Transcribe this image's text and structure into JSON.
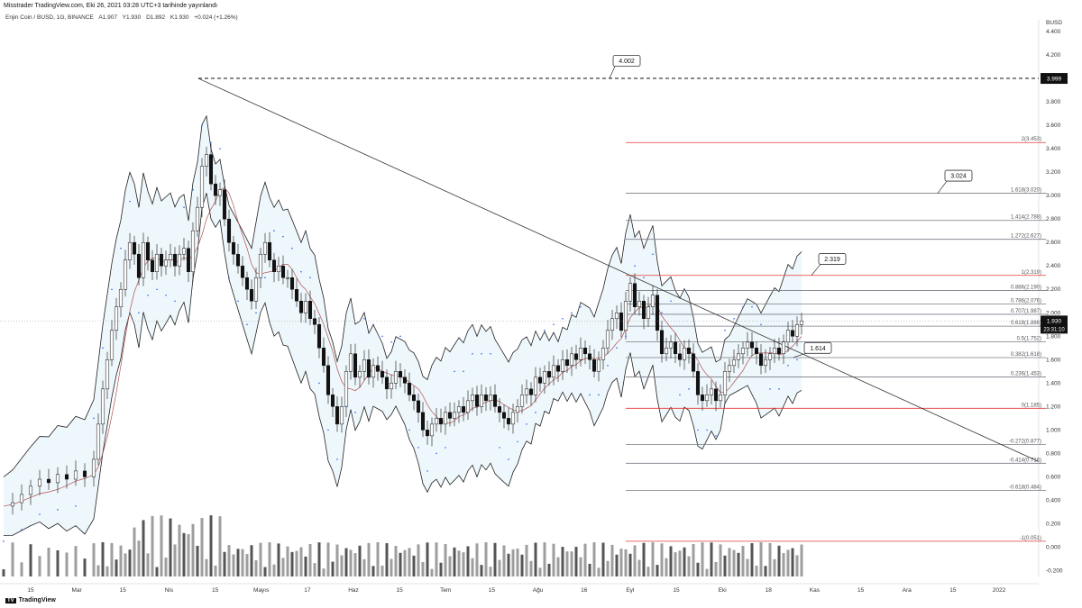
{
  "header": {
    "publish_line": "Misstrader TradingView.com, Eki 26, 2021 03:28 UTC+3 tarihinde yayınlandı"
  },
  "legend": {
    "symbol": "Enjin Coin / BUSD, 1G, BINANCE",
    "open": "A1.907",
    "high": "Y1.930",
    "low": "D1.892",
    "close": "K1.930",
    "change": "+0.024 (+1.26%)"
  },
  "currency_label": "BUSD",
  "branding": "TradingView",
  "chart_data": {
    "type": "candlestick",
    "symbol": "ENJ/BUSD",
    "timeframe": "1G",
    "exchange": "BINANCE",
    "ylim": [
      -0.25,
      4.5
    ],
    "y_ticks": [
      "4.400",
      "4.200",
      "4.000",
      "3.800",
      "3.600",
      "3.400",
      "3.200",
      "3.000",
      "2.800",
      "2.600",
      "2.400",
      "2.200",
      "2.000",
      "1.800",
      "1.600",
      "1.400",
      "1.200",
      "1.000",
      "0.800",
      "0.600",
      "0.400",
      "0.200",
      "0.000",
      "-0.200"
    ],
    "x_ticks": [
      "15",
      "Mar",
      "15",
      "Nis",
      "15",
      "Mayıs",
      "17",
      "Haz",
      "15",
      "Tem",
      "15",
      "Ağu",
      "16",
      "Eyl",
      "15",
      "Eki",
      "18",
      "Kas",
      "15",
      "Ara",
      "15",
      "2022"
    ],
    "current_price": "1.930",
    "countdown": "23:31:10",
    "high_marker": "3.999",
    "annotations": [
      "4.002",
      "3.024",
      "2.319",
      "1.614"
    ],
    "fib_levels": [
      {
        "label": "2(3.453)",
        "value": 3.453,
        "color": "#e53935"
      },
      {
        "label": "1.618(3.020)",
        "value": 3.02,
        "color": "#787b86"
      },
      {
        "label": "1.414(2.788)",
        "value": 2.788,
        "color": "#787b86"
      },
      {
        "label": "1.272(2.627)",
        "value": 2.627,
        "color": "#787b86"
      },
      {
        "label": "1(2.319)",
        "value": 2.319,
        "color": "#e53935"
      },
      {
        "label": "0.886(2.190)",
        "value": 2.19,
        "color": "#787b86"
      },
      {
        "label": "0.786(2.076)",
        "value": 2.076,
        "color": "#787b86"
      },
      {
        "label": "0.707(1.987)",
        "value": 1.987,
        "color": "#787b86"
      },
      {
        "label": "0.618(1.886)",
        "value": 1.886,
        "color": "#787b86"
      },
      {
        "label": "0.5(1.752)",
        "value": 1.752,
        "color": "#787b86"
      },
      {
        "label": "0.382(1.618)",
        "value": 1.618,
        "color": "#787b86"
      },
      {
        "label": "0.236(1.453)",
        "value": 1.453,
        "color": "#787b86"
      },
      {
        "label": "0(1.185)",
        "value": 1.185,
        "color": "#e53935"
      },
      {
        "label": "-0.272(0.877)",
        "value": 0.877,
        "color": "#787b86"
      },
      {
        "label": "-0.414(0.716)",
        "value": 0.716,
        "color": "#787b86"
      },
      {
        "label": "-0.618(0.484)",
        "value": 0.484,
        "color": "#787b86"
      },
      {
        "label": "-1(0.051)",
        "value": 0.051,
        "color": "#e53935"
      }
    ],
    "price_path": [
      [
        0,
        0.35
      ],
      [
        10,
        0.38
      ],
      [
        20,
        0.45
      ],
      [
        30,
        0.52
      ],
      [
        40,
        0.58
      ],
      [
        50,
        0.55
      ],
      [
        60,
        0.62
      ],
      [
        70,
        0.58
      ],
      [
        80,
        0.65
      ],
      [
        90,
        0.6
      ],
      [
        100,
        0.75
      ],
      [
        105,
        1.05
      ],
      [
        110,
        1.35
      ],
      [
        115,
        1.6
      ],
      [
        120,
        1.85
      ],
      [
        125,
        2.05
      ],
      [
        130,
        2.2
      ],
      [
        135,
        2.45
      ],
      [
        140,
        2.6
      ],
      [
        145,
        2.5
      ],
      [
        150,
        2.3
      ],
      [
        155,
        2.6
      ],
      [
        160,
        2.45
      ],
      [
        165,
        2.35
      ],
      [
        170,
        2.5
      ],
      [
        175,
        2.4
      ],
      [
        180,
        2.45
      ],
      [
        185,
        2.5
      ],
      [
        190,
        2.4
      ],
      [
        195,
        2.5
      ],
      [
        200,
        2.55
      ],
      [
        205,
        2.35
      ],
      [
        210,
        2.7
      ],
      [
        215,
        2.9
      ],
      [
        220,
        3.25
      ],
      [
        225,
        3.35
      ],
      [
        230,
        3.1
      ],
      [
        235,
        3.0
      ],
      [
        240,
        3.05
      ],
      [
        245,
        2.8
      ],
      [
        250,
        2.6
      ],
      [
        255,
        2.5
      ],
      [
        260,
        2.4
      ],
      [
        265,
        2.3
      ],
      [
        270,
        2.2
      ],
      [
        275,
        2.1
      ],
      [
        280,
        2.3
      ],
      [
        285,
        2.5
      ],
      [
        290,
        2.6
      ],
      [
        295,
        2.45
      ],
      [
        300,
        2.35
      ],
      [
        305,
        2.4
      ],
      [
        310,
        2.3
      ],
      [
        315,
        2.3
      ],
      [
        320,
        2.2
      ],
      [
        325,
        2.1
      ],
      [
        330,
        2.0
      ],
      [
        335,
        2.1
      ],
      [
        340,
        1.95
      ],
      [
        345,
        1.9
      ],
      [
        350,
        1.7
      ],
      [
        355,
        1.55
      ],
      [
        360,
        1.3
      ],
      [
        365,
        1.2
      ],
      [
        370,
        1.05
      ],
      [
        375,
        1.2
      ],
      [
        380,
        1.5
      ],
      [
        385,
        1.65
      ],
      [
        390,
        1.45
      ],
      [
        395,
        1.5
      ],
      [
        400,
        1.6
      ],
      [
        405,
        1.45
      ],
      [
        410,
        1.55
      ],
      [
        415,
        1.5
      ],
      [
        420,
        1.45
      ],
      [
        425,
        1.35
      ],
      [
        430,
        1.4
      ],
      [
        435,
        1.5
      ],
      [
        440,
        1.45
      ],
      [
        445,
        1.4
      ],
      [
        450,
        1.3
      ],
      [
        455,
        1.25
      ],
      [
        460,
        1.15
      ],
      [
        465,
        1.0
      ],
      [
        470,
        0.95
      ],
      [
        475,
        1.05
      ],
      [
        480,
        1.1
      ],
      [
        485,
        1.05
      ],
      [
        490,
        1.15
      ],
      [
        495,
        1.1
      ],
      [
        500,
        1.15
      ],
      [
        505,
        1.2
      ],
      [
        510,
        1.15
      ],
      [
        515,
        1.25
      ],
      [
        520,
        1.3
      ],
      [
        525,
        1.2
      ],
      [
        530,
        1.3
      ],
      [
        535,
        1.25
      ],
      [
        540,
        1.3
      ],
      [
        545,
        1.2
      ],
      [
        550,
        1.15
      ],
      [
        555,
        1.1
      ],
      [
        560,
        1.05
      ],
      [
        565,
        1.15
      ],
      [
        570,
        1.2
      ],
      [
        575,
        1.3
      ],
      [
        580,
        1.35
      ],
      [
        585,
        1.3
      ],
      [
        590,
        1.45
      ],
      [
        595,
        1.4
      ],
      [
        600,
        1.5
      ],
      [
        605,
        1.45
      ],
      [
        610,
        1.55
      ],
      [
        615,
        1.5
      ],
      [
        620,
        1.6
      ],
      [
        625,
        1.55
      ],
      [
        630,
        1.65
      ],
      [
        635,
        1.6
      ],
      [
        640,
        1.7
      ],
      [
        645,
        1.65
      ],
      [
        650,
        1.6
      ],
      [
        655,
        1.5
      ],
      [
        660,
        1.6
      ],
      [
        665,
        1.7
      ],
      [
        670,
        1.85
      ],
      [
        675,
        1.95
      ],
      [
        680,
        2.0
      ],
      [
        685,
        1.85
      ],
      [
        690,
        2.1
      ],
      [
        695,
        2.25
      ],
      [
        700,
        2.05
      ],
      [
        705,
        2.1
      ],
      [
        710,
        1.95
      ],
      [
        715,
        2.05
      ],
      [
        720,
        2.15
      ],
      [
        725,
        1.85
      ],
      [
        730,
        1.65
      ],
      [
        735,
        1.7
      ],
      [
        740,
        1.75
      ],
      [
        745,
        1.65
      ],
      [
        750,
        1.6
      ],
      [
        755,
        1.7
      ],
      [
        760,
        1.65
      ],
      [
        765,
        1.5
      ],
      [
        770,
        1.3
      ],
      [
        775,
        1.25
      ],
      [
        780,
        1.3
      ],
      [
        785,
        1.35
      ],
      [
        790,
        1.25
      ],
      [
        795,
        1.3
      ],
      [
        800,
        1.5
      ],
      [
        805,
        1.55
      ],
      [
        810,
        1.6
      ],
      [
        815,
        1.65
      ],
      [
        820,
        1.7
      ],
      [
        825,
        1.75
      ],
      [
        830,
        1.7
      ],
      [
        835,
        1.65
      ],
      [
        840,
        1.55
      ],
      [
        845,
        1.6
      ],
      [
        850,
        1.65
      ],
      [
        855,
        1.7
      ],
      [
        860,
        1.65
      ],
      [
        865,
        1.75
      ],
      [
        870,
        1.85
      ],
      [
        875,
        1.8
      ],
      [
        880,
        1.9
      ],
      [
        885,
        1.93
      ]
    ]
  }
}
